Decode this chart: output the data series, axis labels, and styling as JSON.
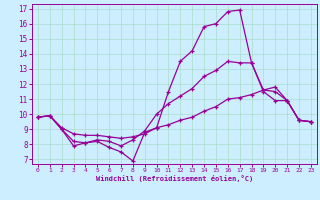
{
  "xlabel": "Windchill (Refroidissement éolien,°C)",
  "bg_color": "#cceeff",
  "line_color": "#990099",
  "grid_color": "#aaddcc",
  "xlim": [
    -0.5,
    23.5
  ],
  "ylim": [
    6.7,
    17.3
  ],
  "yticks": [
    7,
    8,
    9,
    10,
    11,
    12,
    13,
    14,
    15,
    16,
    17
  ],
  "xticks": [
    0,
    1,
    2,
    3,
    4,
    5,
    6,
    7,
    8,
    9,
    10,
    11,
    12,
    13,
    14,
    15,
    16,
    17,
    18,
    19,
    20,
    21,
    22,
    23
  ],
  "line1_x": [
    0,
    1,
    2,
    3,
    4,
    5,
    6,
    7,
    8,
    9,
    10,
    11,
    12,
    13,
    14,
    15,
    16,
    17,
    18,
    19,
    20,
    21,
    22,
    23
  ],
  "line1_y": [
    9.8,
    9.9,
    9.0,
    7.9,
    8.1,
    8.2,
    7.8,
    7.5,
    6.9,
    8.8,
    9.1,
    11.5,
    13.5,
    14.2,
    15.8,
    16.0,
    16.8,
    16.9,
    13.4,
    11.5,
    10.9,
    10.9,
    9.6,
    9.5
  ],
  "line2_x": [
    0,
    1,
    2,
    3,
    4,
    5,
    6,
    7,
    8,
    9,
    10,
    11,
    12,
    13,
    14,
    15,
    16,
    17,
    18,
    19,
    20,
    21,
    22,
    23
  ],
  "line2_y": [
    9.8,
    9.9,
    9.0,
    8.2,
    8.1,
    8.3,
    8.2,
    7.9,
    8.3,
    8.9,
    10.0,
    10.7,
    11.2,
    11.7,
    12.5,
    12.9,
    13.5,
    13.4,
    13.4,
    11.6,
    11.5,
    10.9,
    9.6,
    9.5
  ],
  "line3_x": [
    0,
    1,
    2,
    3,
    4,
    5,
    6,
    7,
    8,
    9,
    10,
    11,
    12,
    13,
    14,
    15,
    16,
    17,
    18,
    19,
    20,
    21,
    22,
    23
  ],
  "line3_y": [
    9.8,
    9.9,
    9.1,
    8.7,
    8.6,
    8.6,
    8.5,
    8.4,
    8.5,
    8.7,
    9.1,
    9.3,
    9.6,
    9.8,
    10.2,
    10.5,
    11.0,
    11.1,
    11.3,
    11.6,
    11.8,
    10.9,
    9.6,
    9.5
  ]
}
